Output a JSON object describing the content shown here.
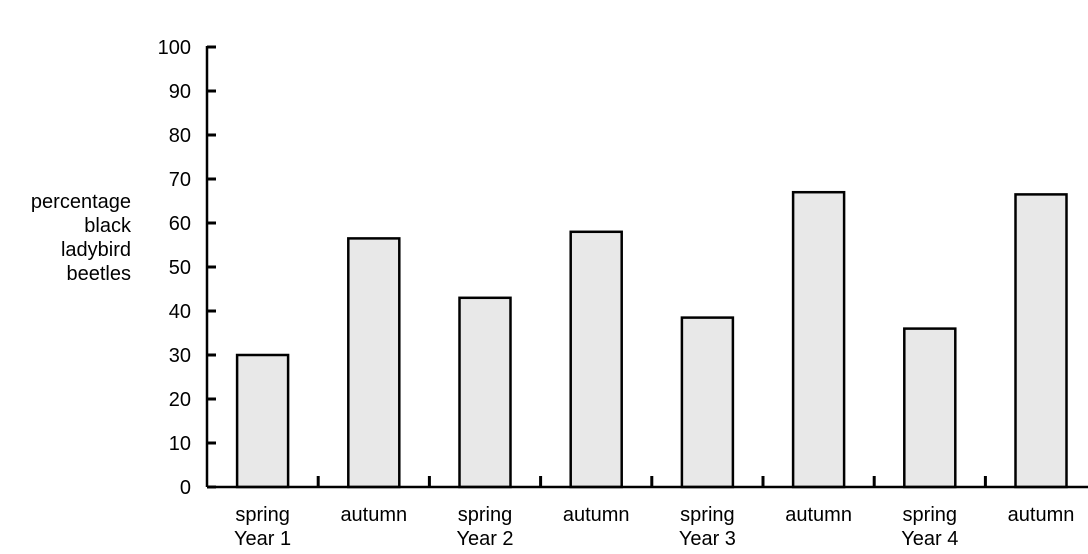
{
  "chart_data": {
    "type": "bar",
    "categories": [
      "spring",
      "autumn",
      "spring",
      "autumn",
      "spring",
      "autumn",
      "spring",
      "autumn"
    ],
    "groups": [
      "Year 1",
      "Year 2",
      "Year 3",
      "Year 4"
    ],
    "values": [
      30,
      56.5,
      43,
      58,
      38.5,
      67,
      36,
      66.5
    ],
    "ylabel_lines": [
      "percentage",
      "black",
      "ladybird",
      "beetles"
    ],
    "ylim": [
      0,
      100
    ],
    "yticks": [
      0,
      10,
      20,
      30,
      40,
      50,
      60,
      70,
      80,
      90,
      100
    ],
    "bar_color": "#e8e8e8",
    "grid": false,
    "legend": "none"
  }
}
